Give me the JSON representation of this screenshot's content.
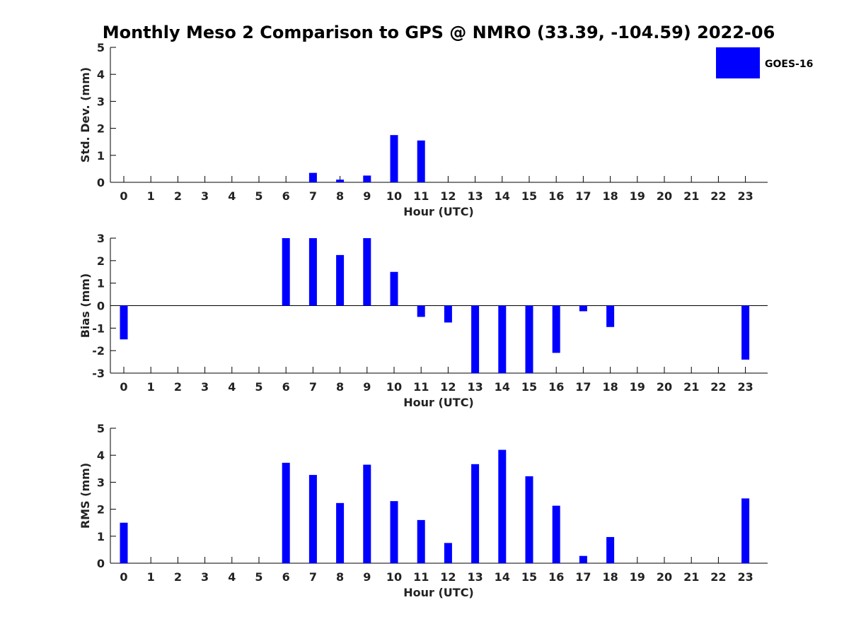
{
  "figure": {
    "title": "Monthly Meso 2 Comparison to GPS @ NMRO (33.39, -104.59) 2022-06"
  },
  "legend": {
    "label": "GOES-16",
    "color": "#0000ff",
    "placement": "top-right"
  },
  "chart_data": [
    {
      "type": "bar",
      "name": "std-dev",
      "xlabel": "Hour (UTC)",
      "ylabel": "Std. Dev. (mm)",
      "categories": [
        "0",
        "1",
        "2",
        "3",
        "4",
        "5",
        "6",
        "7",
        "8",
        "9",
        "10",
        "11",
        "12",
        "13",
        "14",
        "15",
        "16",
        "17",
        "18",
        "19",
        "20",
        "21",
        "22",
        "23"
      ],
      "series": [
        {
          "name": "GOES-16",
          "values": [
            0,
            0,
            0,
            0,
            0,
            0,
            0,
            0.35,
            0.1,
            0.25,
            1.75,
            1.55,
            0,
            0,
            0,
            0,
            0,
            0,
            0,
            0,
            0,
            0,
            0,
            0
          ]
        }
      ],
      "ylim": [
        0,
        5
      ],
      "yticks": [
        0,
        1,
        2,
        3,
        4,
        5
      ],
      "grid": false,
      "color": "#0000ff"
    },
    {
      "type": "bar",
      "name": "bias",
      "xlabel": "Hour (UTC)",
      "ylabel": "Bias (mm)",
      "categories": [
        "0",
        "1",
        "2",
        "3",
        "4",
        "5",
        "6",
        "7",
        "8",
        "9",
        "10",
        "11",
        "12",
        "13",
        "14",
        "15",
        "16",
        "17",
        "18",
        "19",
        "20",
        "21",
        "22",
        "23"
      ],
      "series": [
        {
          "name": "GOES-16",
          "values": [
            -1.5,
            0,
            0,
            0,
            0,
            0,
            3.0,
            3.0,
            2.25,
            3.0,
            1.5,
            -0.5,
            -0.75,
            -3.0,
            -3.0,
            -3.0,
            -2.1,
            -0.25,
            -0.95,
            0,
            0,
            0,
            0,
            -2.4
          ]
        }
      ],
      "ylim": [
        -3,
        3
      ],
      "yticks": [
        -3,
        -2,
        -1,
        0,
        1,
        2,
        3
      ],
      "zero_line": true,
      "grid": false,
      "color": "#0000ff"
    },
    {
      "type": "bar",
      "name": "rms",
      "xlabel": "Hour (UTC)",
      "ylabel": "RMS (mm)",
      "categories": [
        "0",
        "1",
        "2",
        "3",
        "4",
        "5",
        "6",
        "7",
        "8",
        "9",
        "10",
        "11",
        "12",
        "13",
        "14",
        "15",
        "16",
        "17",
        "18",
        "19",
        "20",
        "21",
        "22",
        "23"
      ],
      "series": [
        {
          "name": "GOES-16",
          "values": [
            1.5,
            0,
            0,
            0,
            0,
            0,
            3.72,
            3.27,
            2.23,
            3.65,
            2.3,
            1.6,
            0.75,
            3.67,
            4.2,
            3.22,
            2.13,
            0.27,
            0.97,
            0,
            0,
            0,
            0,
            2.4
          ]
        }
      ],
      "ylim": [
        0,
        5
      ],
      "yticks": [
        0,
        1,
        2,
        3,
        4,
        5
      ],
      "grid": false,
      "color": "#0000ff"
    }
  ]
}
